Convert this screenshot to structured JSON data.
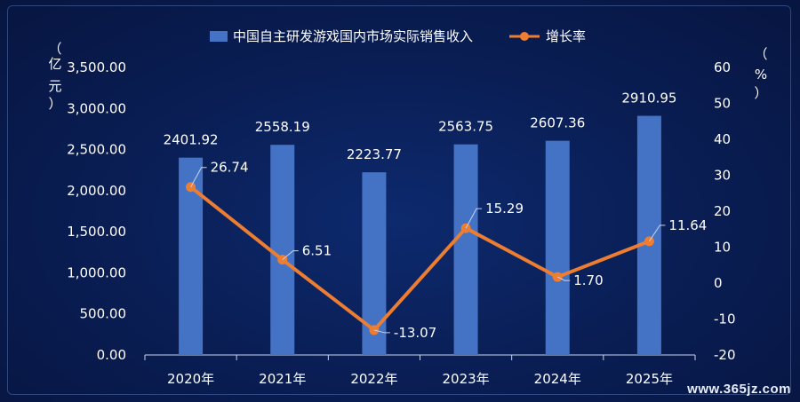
{
  "watermark": "www.365jz.com",
  "chart_data": {
    "type": "bar",
    "title": "",
    "categories": [
      "2020年",
      "2021年",
      "2022年",
      "2023年",
      "2024年",
      "2025年"
    ],
    "series": [
      {
        "name": "中国自主研发游戏国内市场实际销售收入",
        "type": "bar",
        "axis": "left",
        "color": "#4472c4",
        "values": [
          2401.92,
          2558.19,
          2223.77,
          2563.75,
          2607.36,
          2910.95
        ],
        "labels": [
          "2401.92",
          "2558.19",
          "2223.77",
          "2563.75",
          "2607.36",
          "2910.95"
        ]
      },
      {
        "name": "增长率",
        "type": "line",
        "axis": "right",
        "color": "#ed7d31",
        "values": [
          26.74,
          6.51,
          -13.07,
          15.29,
          1.7,
          11.64
        ],
        "labels": [
          "26.74",
          "6.51",
          "-13.07",
          "15.29",
          "1.70",
          "11.64"
        ]
      }
    ],
    "y_left": {
      "label_chars": [
        "（",
        "亿",
        "元",
        "）"
      ],
      "range": [
        0,
        3500
      ],
      "ticks": [
        "0.00",
        "500.00",
        "1,000.00",
        "1,500.00",
        "2,000.00",
        "2,500.00",
        "3,000.00",
        "3,500.00"
      ]
    },
    "y_right": {
      "label_chars": [
        "（",
        "%",
        "）"
      ],
      "range": [
        -20,
        60
      ],
      "ticks": [
        "-20",
        "-10",
        "0",
        "10",
        "20",
        "30",
        "40",
        "50",
        "60"
      ]
    },
    "legend_position": "top-center",
    "grid": false
  }
}
